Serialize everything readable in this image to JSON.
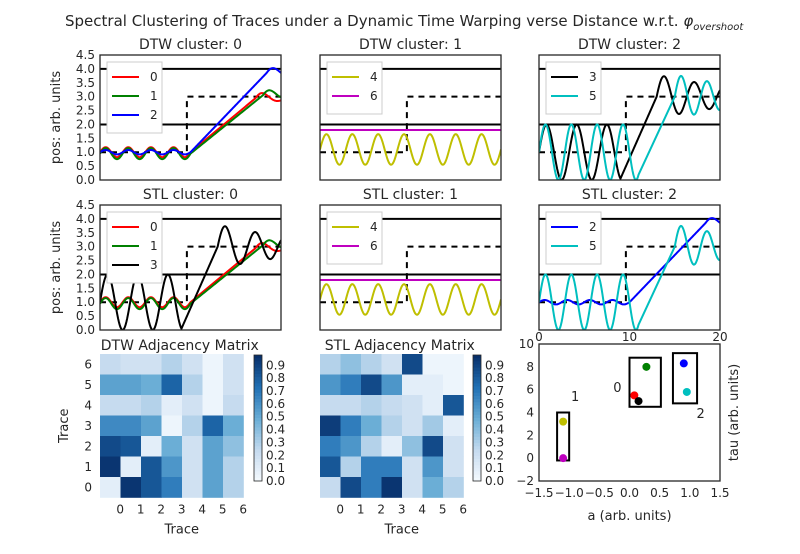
{
  "figure": {
    "title": "Spectral Clustering of Traces under a Dynamic Time Warping verse Distance w.r.t. ",
    "title_symbol": "φ",
    "title_subscript": "overshoot"
  },
  "chart_data": [
    {
      "type": "line",
      "title": "DTW cluster: 0",
      "ylabel": "pos: arb. units",
      "ylim": [
        0,
        4.5
      ],
      "yticks": [
        "0.0",
        "0.5",
        "1.0",
        "1.5",
        "2.0",
        "2.5",
        "3.0",
        "3.5",
        "4.0",
        "4.5"
      ],
      "series": [
        {
          "name": "0",
          "color": "#ff0000",
          "kind": "ramp",
          "base": 1.0,
          "top": 2.95,
          "t_start": 0.5,
          "t_end": 0.86,
          "ripple": 0.18
        },
        {
          "name": "1",
          "color": "#008000",
          "kind": "ramp",
          "base": 0.95,
          "top": 3.05,
          "t_start": 0.5,
          "t_end": 0.9,
          "ripple": 0.2
        },
        {
          "name": "2",
          "color": "#0000ff",
          "kind": "ramp",
          "base": 1.0,
          "top": 3.85,
          "t_start": 0.5,
          "t_end": 0.92,
          "ripple": 0.08
        }
      ],
      "hlines_solid": [
        2.0,
        4.0
      ],
      "step_dashed": {
        "low": 1.0,
        "high": 3.0,
        "t_step": 0.48
      }
    },
    {
      "type": "line",
      "title": "DTW cluster: 1",
      "ylim": [
        0,
        4.5
      ],
      "series": [
        {
          "name": "4",
          "color": "#bfbf00",
          "kind": "sine",
          "center": 1.1,
          "amp": 0.55,
          "periods": 7
        },
        {
          "name": "6",
          "color": "#bf00bf",
          "kind": "flat",
          "value": 1.8
        }
      ],
      "hlines_solid": [
        2.0,
        4.0
      ],
      "step_dashed": {
        "low": 1.0,
        "high": 3.0,
        "t_step": 0.48
      }
    },
    {
      "type": "line",
      "title": "DTW cluster: 2",
      "ylim": [
        0,
        4.5
      ],
      "series": [
        {
          "name": "3",
          "color": "#000000",
          "kind": "sine_ramp",
          "amp": 1.0,
          "center": 1.0,
          "periods": 6,
          "t_break": 0.45,
          "top": 3.0
        },
        {
          "name": "5",
          "color": "#00bfbf",
          "kind": "sine_ramp",
          "amp": 1.0,
          "center": 1.0,
          "periods": 7,
          "t_break": 0.55,
          "top": 3.0
        }
      ],
      "hlines_solid": [
        2.0,
        4.0
      ],
      "step_dashed": {
        "low": 1.0,
        "high": 3.0,
        "t_step": 0.48
      }
    },
    {
      "type": "line",
      "title": "STL cluster: 0",
      "ylabel": "pos: arb. units",
      "ylim": [
        0,
        4.5
      ],
      "yticks": [
        "0.0",
        "0.5",
        "1.0",
        "1.5",
        "2.0",
        "2.5",
        "3.0",
        "3.5",
        "4.0",
        "4.5"
      ],
      "series": [
        {
          "name": "0",
          "color": "#ff0000",
          "kind": "ramp",
          "base": 1.0,
          "top": 2.95,
          "t_start": 0.5,
          "t_end": 0.86,
          "ripple": 0.18
        },
        {
          "name": "1",
          "color": "#008000",
          "kind": "ramp",
          "base": 0.95,
          "top": 3.05,
          "t_start": 0.5,
          "t_end": 0.9,
          "ripple": 0.2
        },
        {
          "name": "3",
          "color": "#000000",
          "kind": "sine_ramp",
          "amp": 1.0,
          "center": 1.0,
          "periods": 6,
          "t_break": 0.45,
          "top": 3.0
        }
      ],
      "hlines_solid": [
        2.0,
        4.0
      ],
      "step_dashed": {
        "low": 1.0,
        "high": 3.0,
        "t_step": 0.48
      }
    },
    {
      "type": "line",
      "title": "STL cluster: 1",
      "ylim": [
        0,
        4.5
      ],
      "series": [
        {
          "name": "4",
          "color": "#bfbf00",
          "kind": "sine",
          "center": 1.1,
          "amp": 0.55,
          "periods": 7
        },
        {
          "name": "6",
          "color": "#bf00bf",
          "kind": "flat",
          "value": 1.8
        }
      ],
      "hlines_solid": [
        2.0,
        4.0
      ],
      "step_dashed": {
        "low": 1.0,
        "high": 3.0,
        "t_step": 0.48
      }
    },
    {
      "type": "line",
      "title": "STL cluster: 2",
      "ylim": [
        0,
        4.5
      ],
      "xlim": [
        0,
        20
      ],
      "xticks": [
        "0",
        "10",
        "20"
      ],
      "series": [
        {
          "name": "2",
          "color": "#0000ff",
          "kind": "ramp",
          "base": 1.0,
          "top": 3.85,
          "t_start": 0.5,
          "t_end": 0.92,
          "ripple": 0.08
        },
        {
          "name": "5",
          "color": "#00bfbf",
          "kind": "sine_ramp",
          "amp": 1.0,
          "center": 1.0,
          "periods": 7,
          "t_break": 0.55,
          "top": 3.0
        }
      ],
      "hlines_solid": [
        2.0,
        4.0
      ],
      "step_dashed": {
        "low": 1.0,
        "high": 3.0,
        "t_step": 0.48
      }
    },
    {
      "type": "heatmap",
      "title": "DTW Adjacency Matrix",
      "xlabel": "Trace",
      "ylabel": "Trace",
      "ticks": [
        "0",
        "1",
        "2",
        "3",
        "4",
        "5",
        "6"
      ],
      "colorbar_ticks": [
        "0.0",
        "0.1",
        "0.2",
        "0.3",
        "0.4",
        "0.5",
        "0.6",
        "0.7",
        "0.8",
        "0.9"
      ],
      "rows_top_to_bottom": [
        [
          0.25,
          0.2,
          0.2,
          0.3,
          0.2,
          0.05,
          0.2
        ],
        [
          0.55,
          0.55,
          0.5,
          0.8,
          0.3,
          0.05,
          0.2
        ],
        [
          0.25,
          0.25,
          0.3,
          0.1,
          0.2,
          0.05,
          0.25
        ],
        [
          0.65,
          0.65,
          0.55,
          0.05,
          0.3,
          0.8,
          0.5
        ],
        [
          0.9,
          0.85,
          0.1,
          0.5,
          0.2,
          0.55,
          0.4
        ],
        [
          0.98,
          0.1,
          0.85,
          0.6,
          0.2,
          0.55,
          0.3
        ],
        [
          0.1,
          0.98,
          0.85,
          0.7,
          0.2,
          0.55,
          0.3
        ]
      ]
    },
    {
      "type": "heatmap",
      "title": "STL Adjacency Matrix",
      "xlabel": "Trace",
      "ticks": [
        "0",
        "1",
        "2",
        "3",
        "4",
        "5",
        "6"
      ],
      "colorbar_ticks": [
        "0.0",
        "0.1",
        "0.2",
        "0.3",
        "0.4",
        "0.5",
        "0.6",
        "0.7",
        "0.8",
        "0.9"
      ],
      "rows_top_to_bottom": [
        [
          0.3,
          0.4,
          0.3,
          0.2,
          0.9,
          0.05,
          0.05
        ],
        [
          0.6,
          0.7,
          0.9,
          0.6,
          0.1,
          0.1,
          0.05
        ],
        [
          0.25,
          0.25,
          0.3,
          0.25,
          0.2,
          0.1,
          0.85
        ],
        [
          0.95,
          0.7,
          0.5,
          0.3,
          0.2,
          0.35,
          0.1
        ],
        [
          0.7,
          0.6,
          0.3,
          0.1,
          0.4,
          0.9,
          0.2
        ],
        [
          0.85,
          0.3,
          0.7,
          0.7,
          0.2,
          0.6,
          0.2
        ],
        [
          0.25,
          0.9,
          0.7,
          0.98,
          0.2,
          0.5,
          0.3
        ]
      ]
    },
    {
      "type": "scatter",
      "xlabel": "a (arb. units)",
      "ylabel": "tau (arb. units)",
      "xlim": [
        -1.5,
        1.5
      ],
      "ylim": [
        -2,
        10
      ],
      "xticks": [
        "−1.5",
        "−1.0",
        "−0.5",
        "0.0",
        "0.5",
        "1.0",
        "1.5"
      ],
      "yticks": [
        "−2",
        "0",
        "2",
        "4",
        "6",
        "8",
        "10"
      ],
      "top_xlim": [
        0,
        20
      ],
      "top_xticks": [
        "0",
        "10",
        "20"
      ],
      "points": [
        {
          "x": 0.08,
          "y": 5.5,
          "color": "#ff0000"
        },
        {
          "x": 0.28,
          "y": 8.0,
          "color": "#008000"
        },
        {
          "x": 0.9,
          "y": 8.3,
          "color": "#0000ff"
        },
        {
          "x": 0.15,
          "y": 5.0,
          "color": "#000000"
        },
        {
          "x": -1.1,
          "y": 3.2,
          "color": "#bfbf00"
        },
        {
          "x": 0.95,
          "y": 5.8,
          "color": "#00bfbf"
        },
        {
          "x": -1.1,
          "y": 0.0,
          "color": "#bf00bf"
        }
      ],
      "boxes": [
        {
          "label": "0",
          "x0": 0.0,
          "x1": 0.52,
          "y0": 4.5,
          "y1": 8.8
        },
        {
          "label": "1",
          "x0": -1.2,
          "x1": -1.0,
          "y0": -0.2,
          "y1": 4.0
        },
        {
          "label": "2",
          "x0": 0.72,
          "x1": 1.12,
          "y0": 4.8,
          "y1": 9.2
        }
      ],
      "box_labels": [
        {
          "text": "0",
          "x": -0.2,
          "y": 5.8
        },
        {
          "text": "1",
          "x": -0.9,
          "y": 5.0
        },
        {
          "text": "2",
          "x": 1.18,
          "y": 3.5
        }
      ]
    }
  ]
}
